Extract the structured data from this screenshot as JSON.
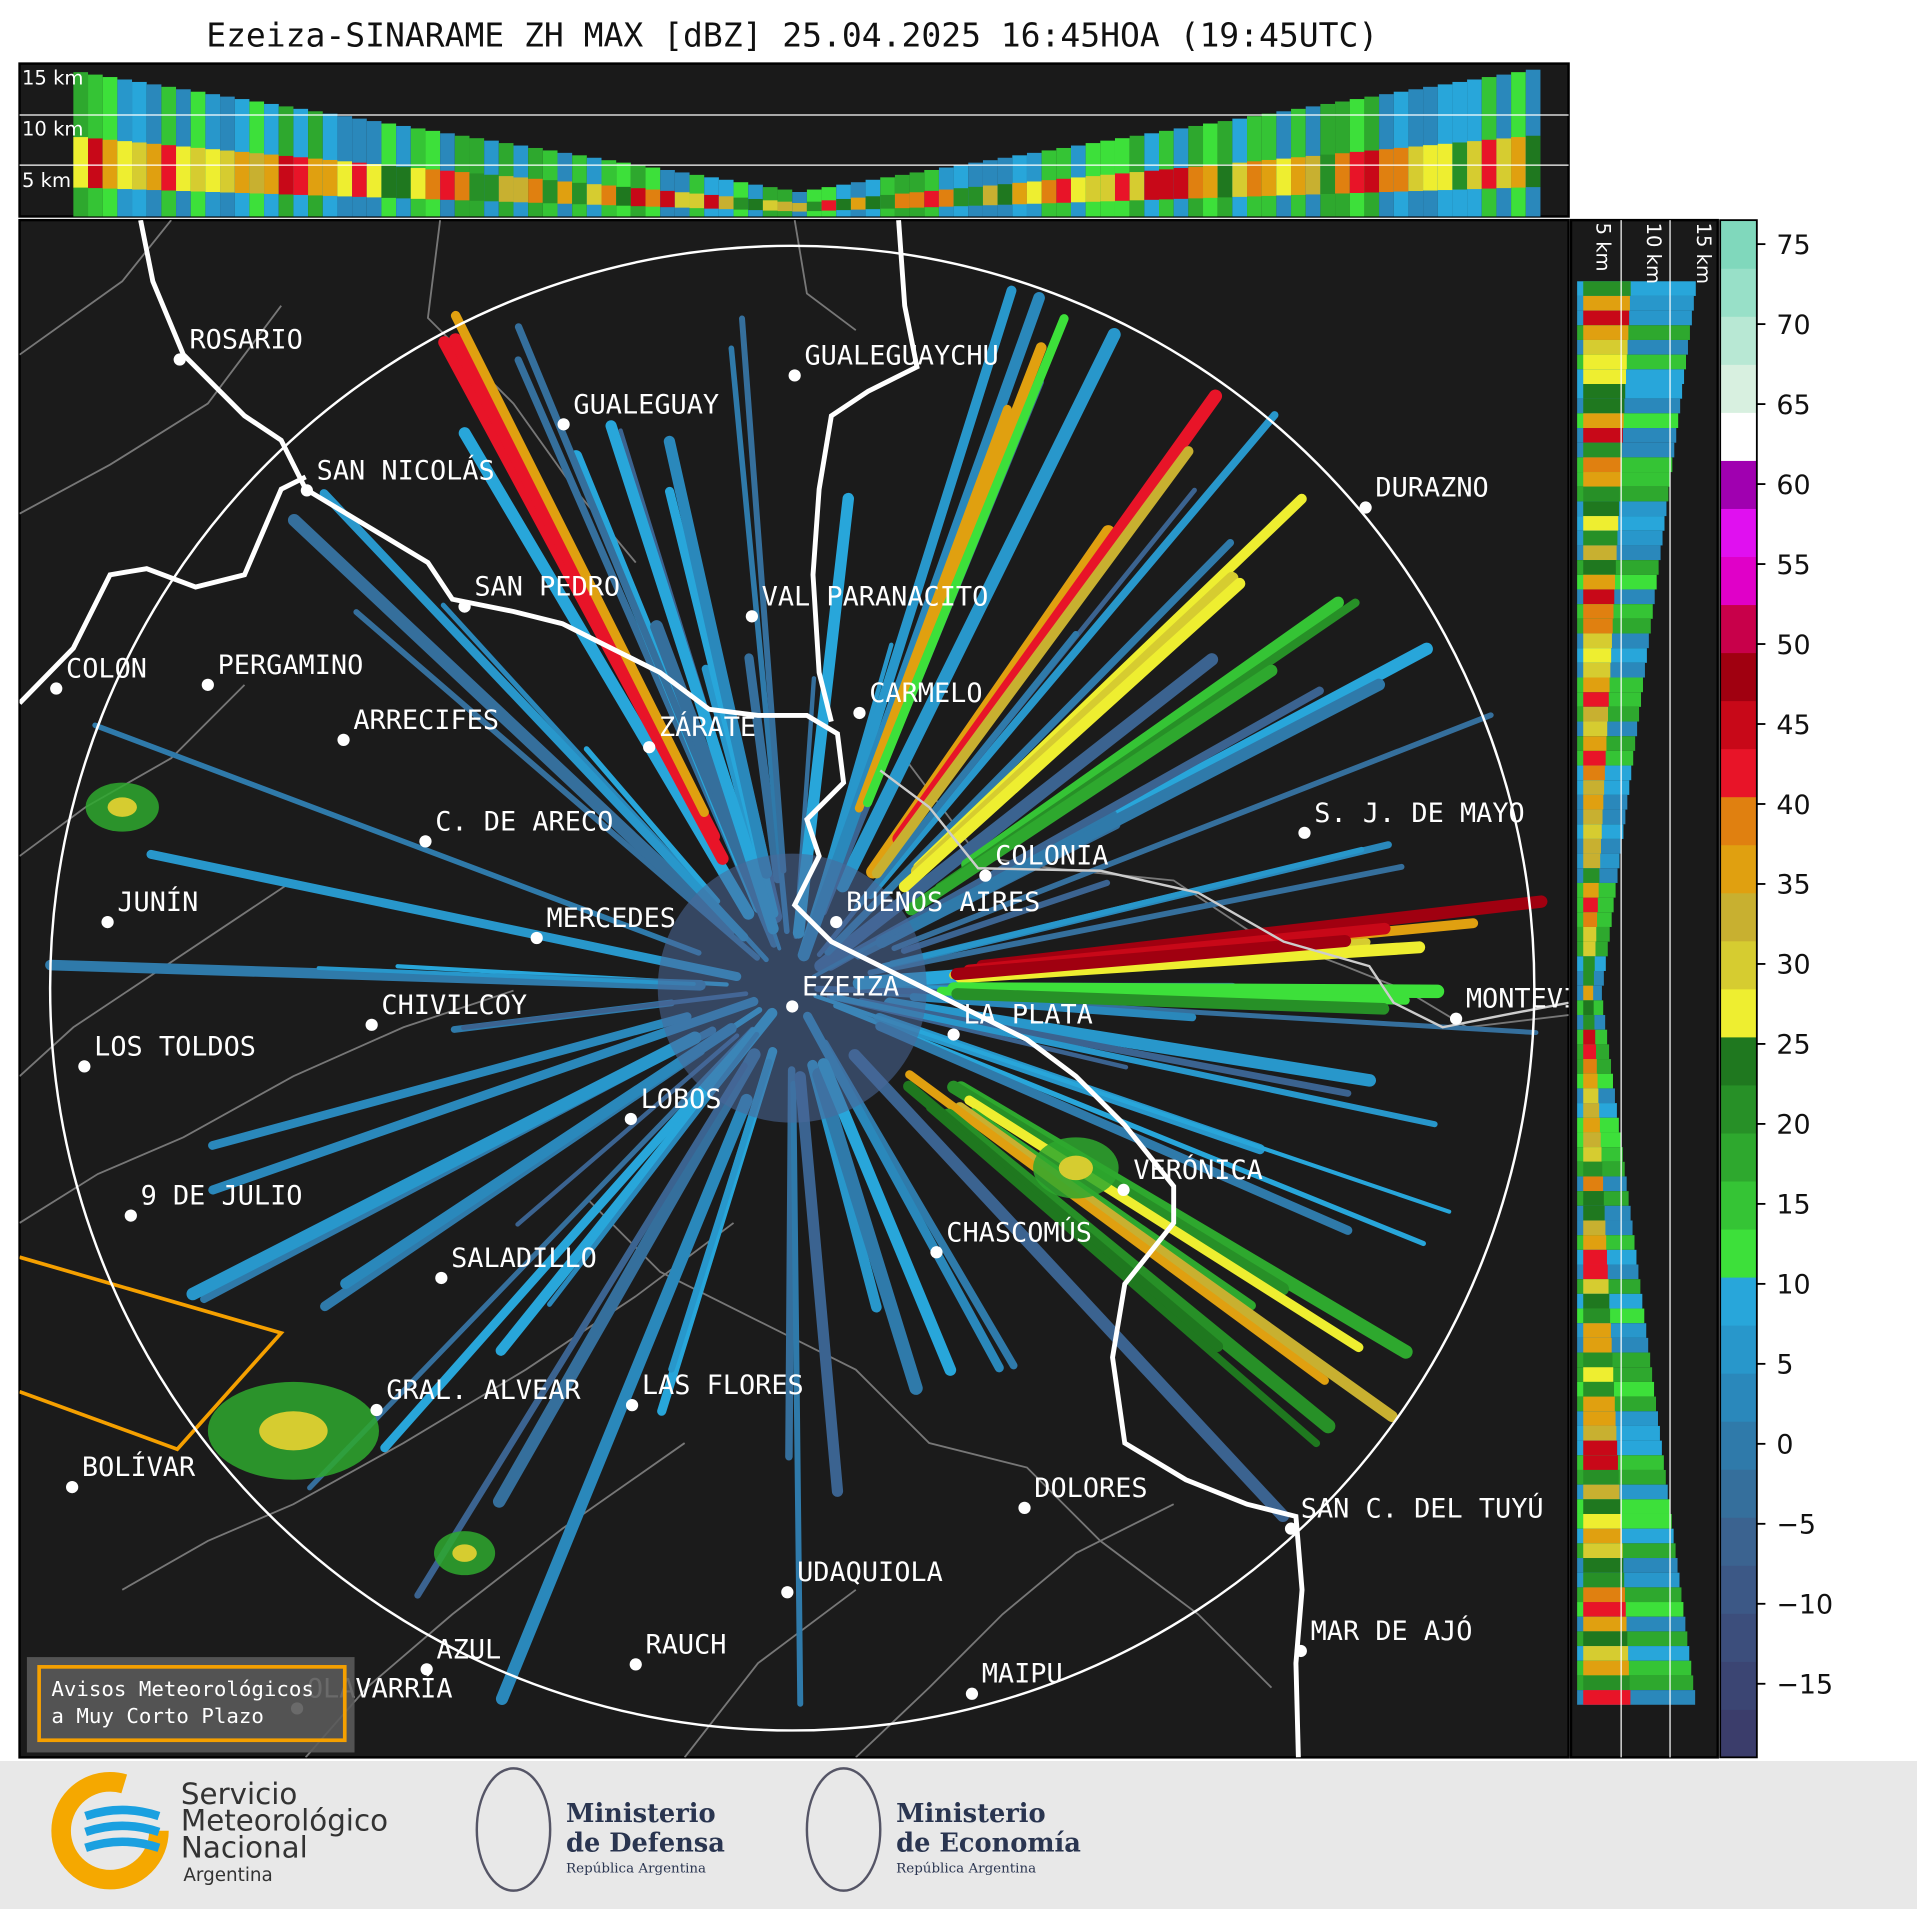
{
  "title": "Ezeiza-SINARAME ZH MAX [dBZ] 25.04.2025 16:45HOA (19:45UTC)",
  "top_heights": [
    "15 km",
    "10 km",
    "5 km"
  ],
  "side_heights": [
    "5 km",
    "10 km",
    "15 km"
  ],
  "cities": [
    "ROSARIO",
    "GUALEGUAYCHU",
    "GUALEGUAY",
    "SAN NICOLÁS",
    "DURAZNO",
    "SAN PEDRO",
    "VAL PARANACITO",
    "COLON",
    "PERGAMINO",
    "CARMELO",
    "ARRECIFES",
    "ZÁRATE",
    "C. DE ARECO",
    "S. J. DE MAYO",
    "COLONIA",
    "JUNÍN",
    "BUENOS AIRES",
    "MERCEDES",
    "EZEIZA",
    "MONTEVIDEO",
    "CHIVILCOY",
    "LA PLATA",
    "LOS TOLDOS",
    "LOBOS",
    "VERÓNICA",
    "9 DE JULIO",
    "CHASCOMÚS",
    "SALADILLO",
    "GRAL. ALVEAR",
    "LAS FLORES",
    "BOLÍVAR",
    "DOLORES",
    "SAN C. DEL TUYÚ",
    "UDAQUIOLA",
    "MAR DE AJÓ",
    "RAUCH",
    "AZUL",
    "OLAVARRÍA",
    "MAIPU"
  ],
  "colorbar": {
    "clim": [
      -19.6,
      76.5
    ],
    "ticks": [
      75,
      70,
      65,
      60,
      55,
      50,
      45,
      40,
      35,
      30,
      25,
      20,
      15,
      10,
      5,
      0,
      {
        "value": -5,
        "label": "−5"
      },
      {
        "value": -10,
        "label": "−10"
      },
      {
        "value": -15,
        "label": "−15"
      }
    ],
    "colormap": [
      "#3b3d6b",
      "#3b4573",
      "#3c4e7c",
      "#3c5886",
      "#3b6390",
      "#356f9c",
      "#2f7aaa",
      "#2a88bb",
      "#2897cb",
      "#28a6da",
      "#3de03a",
      "#35c435",
      "#2ea82e",
      "#279027",
      "#1f781f",
      "#eeee30",
      "#d6cc30",
      "#c8b030",
      "#e0a010",
      "#e08010",
      "#e81428",
      "#c80818",
      "#a00010",
      "#c8004a",
      "#e000c8",
      "#e010f0",
      "#a000b0",
      "#ffffff",
      "#d8f0e0",
      "#b8e8d4",
      "#98e0c8",
      "#80d8bc"
    ]
  },
  "warning_box": [
    "Avisos Meteorológicos",
    "a Muy Corto Plazo"
  ],
  "logos": {
    "smn": [
      "Servicio",
      "Meteorológico",
      "Nacional",
      "Argentina"
    ],
    "defensa": [
      "Ministerio",
      "de Defensa",
      "República Argentina"
    ],
    "economia": [
      "Ministerio",
      "de Economía",
      "República Argentina"
    ]
  }
}
